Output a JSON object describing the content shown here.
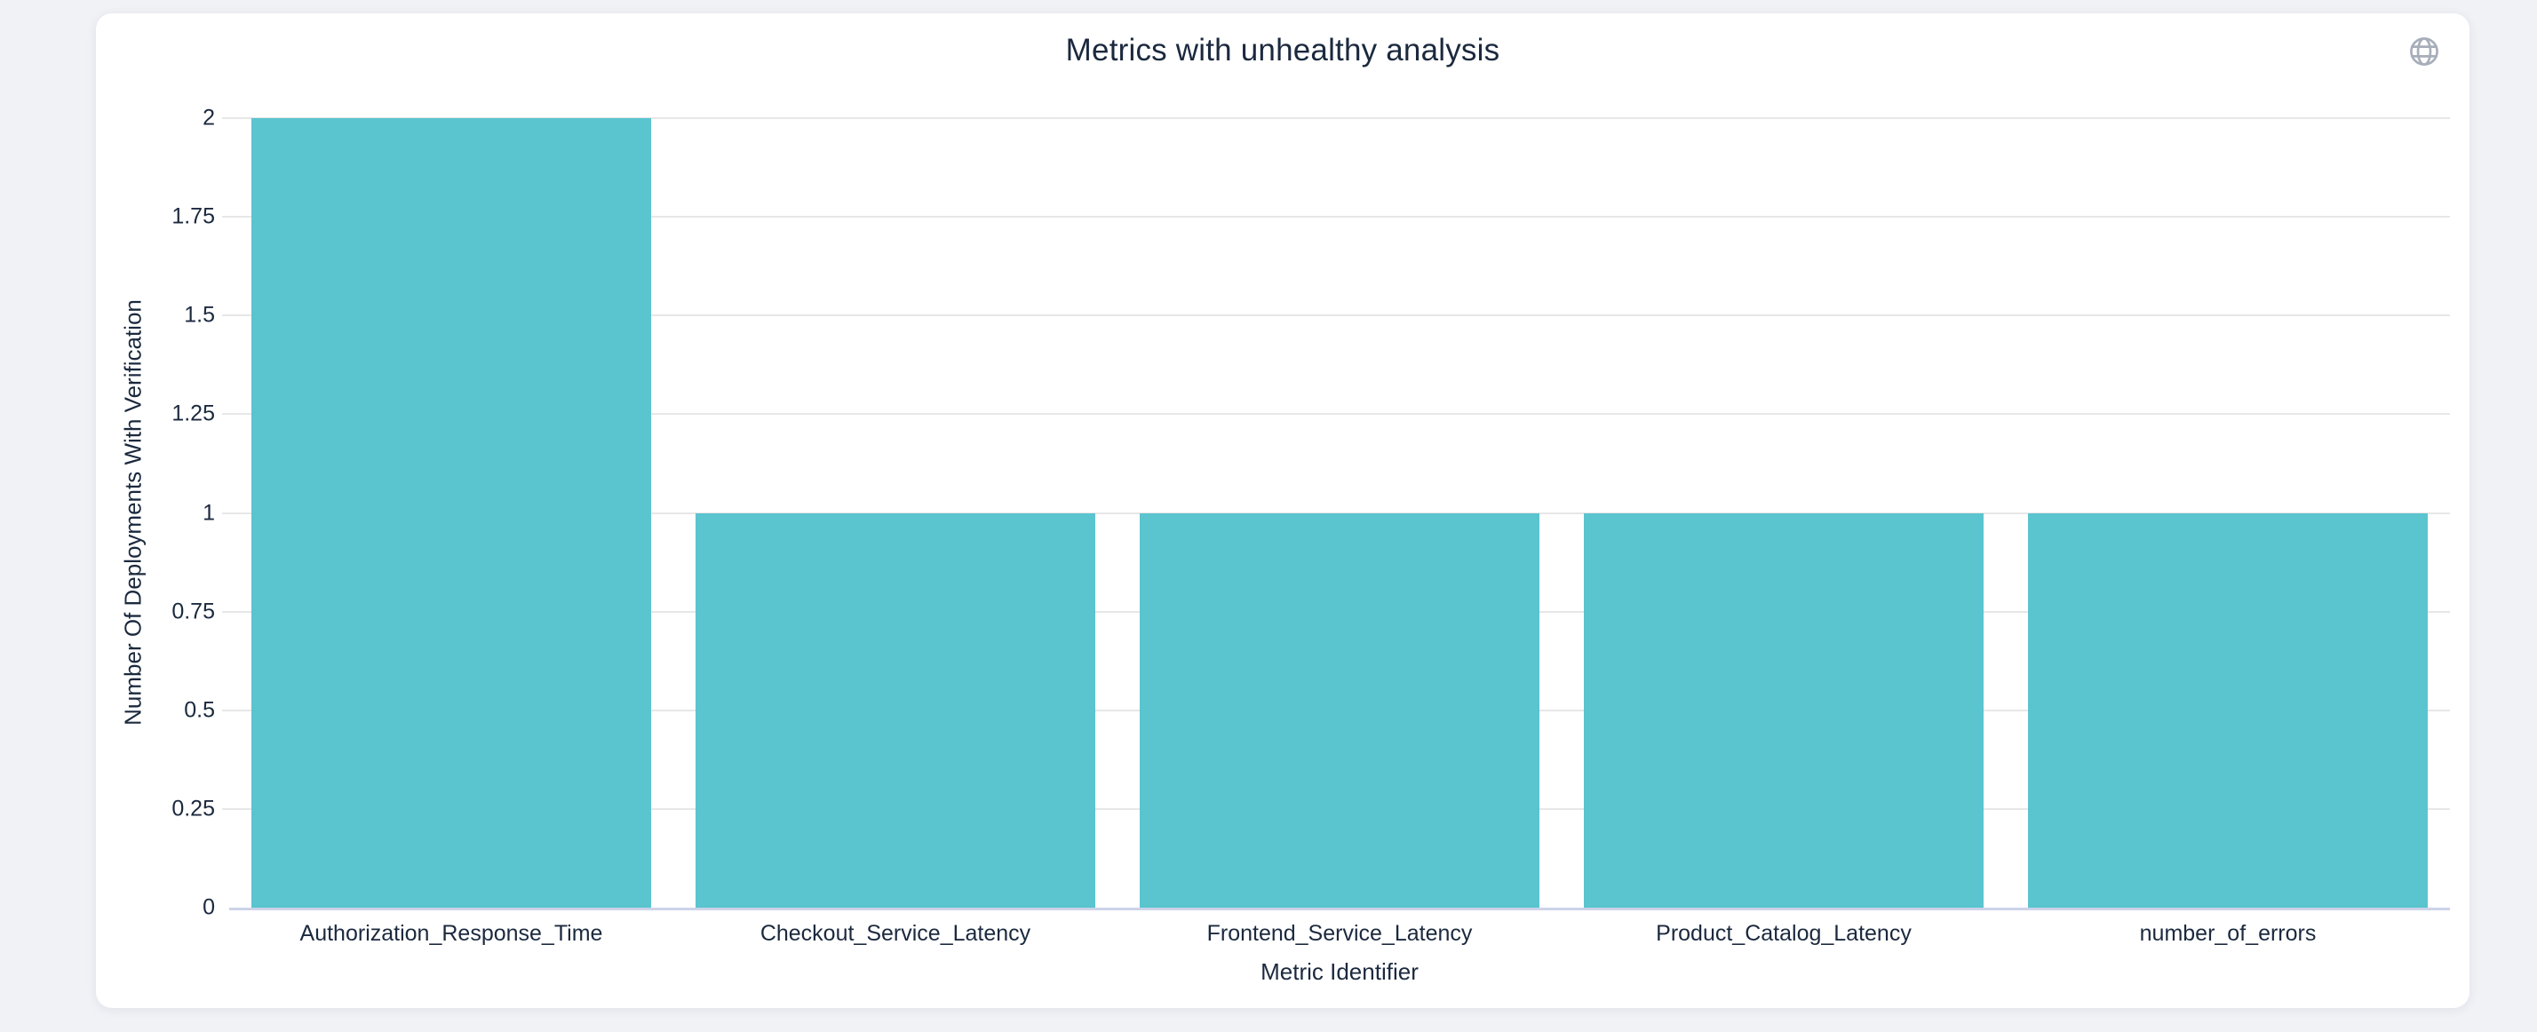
{
  "page": {
    "background": "#f0f2f6"
  },
  "panel": {
    "background": "#ffffff"
  },
  "header": {
    "globe_icon": "globe-icon"
  },
  "chart_data": {
    "type": "bar",
    "title": "Metrics with unhealthy analysis",
    "categories": [
      "Authorization_Response_Time",
      "Checkout_Service_Latency",
      "Frontend_Service_Latency",
      "Product_Catalog_Latency",
      "number_of_errors"
    ],
    "values": [
      2,
      1,
      1,
      1,
      1
    ],
    "xlabel": "Metric Identifier",
    "ylabel": "Number Of Deployments With Verification",
    "ylim": [
      0,
      2
    ],
    "yticks": [
      0,
      0.25,
      0.5,
      0.75,
      1,
      1.25,
      1.5,
      1.75,
      2
    ],
    "ytick_labels": [
      "0",
      "0.25",
      "0.5",
      "0.75",
      "1",
      "1.25",
      "1.5",
      "1.75",
      "2"
    ],
    "bar_color": "#5ac4cf",
    "grid_color": "#e7e7e7",
    "axis_line_color": "#ccd3e8",
    "text_color": "#1b293e",
    "icon_color": "#a7aeba",
    "bar_gap_fraction": 0.1,
    "grid": true,
    "legend_position": "none"
  }
}
